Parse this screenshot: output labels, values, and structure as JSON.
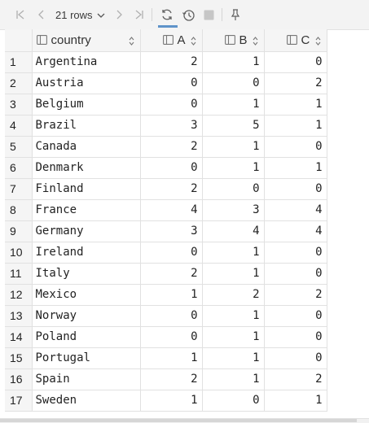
{
  "toolbar": {
    "rows_label": "21 rows",
    "first_icon": "first-page-icon",
    "prev_icon": "prev-page-icon",
    "next_icon": "next-page-icon",
    "last_icon": "last-page-icon",
    "refresh_icon": "refresh-icon",
    "history_icon": "history-icon",
    "stop_icon": "stop-icon",
    "pin_icon": "pin-icon"
  },
  "table": {
    "columns": [
      {
        "label": "country",
        "type": "text"
      },
      {
        "label": "A",
        "type": "number"
      },
      {
        "label": "B",
        "type": "number"
      },
      {
        "label": "C",
        "type": "number"
      }
    ],
    "rows": [
      {
        "index": "1",
        "country": "Argentina",
        "A": "2",
        "B": "1",
        "C": "0"
      },
      {
        "index": "2",
        "country": "Austria",
        "A": "0",
        "B": "0",
        "C": "2"
      },
      {
        "index": "3",
        "country": "Belgium",
        "A": "0",
        "B": "1",
        "C": "1"
      },
      {
        "index": "4",
        "country": "Brazil",
        "A": "3",
        "B": "5",
        "C": "1"
      },
      {
        "index": "5",
        "country": "Canada",
        "A": "2",
        "B": "1",
        "C": "0"
      },
      {
        "index": "6",
        "country": "Denmark",
        "A": "0",
        "B": "1",
        "C": "1"
      },
      {
        "index": "7",
        "country": "Finland",
        "A": "2",
        "B": "0",
        "C": "0"
      },
      {
        "index": "8",
        "country": "France",
        "A": "4",
        "B": "3",
        "C": "4"
      },
      {
        "index": "9",
        "country": "Germany",
        "A": "3",
        "B": "4",
        "C": "4"
      },
      {
        "index": "10",
        "country": "Ireland",
        "A": "0",
        "B": "1",
        "C": "0"
      },
      {
        "index": "11",
        "country": "Italy",
        "A": "2",
        "B": "1",
        "C": "0"
      },
      {
        "index": "12",
        "country": "Mexico",
        "A": "1",
        "B": "2",
        "C": "2"
      },
      {
        "index": "13",
        "country": "Norway",
        "A": "0",
        "B": "1",
        "C": "0"
      },
      {
        "index": "14",
        "country": "Poland",
        "A": "0",
        "B": "1",
        "C": "0"
      },
      {
        "index": "15",
        "country": "Portugal",
        "A": "1",
        "B": "1",
        "C": "0"
      },
      {
        "index": "16",
        "country": "Spain",
        "A": "2",
        "B": "1",
        "C": "2"
      },
      {
        "index": "17",
        "country": "Sweden",
        "A": "1",
        "B": "0",
        "C": "1"
      }
    ]
  }
}
